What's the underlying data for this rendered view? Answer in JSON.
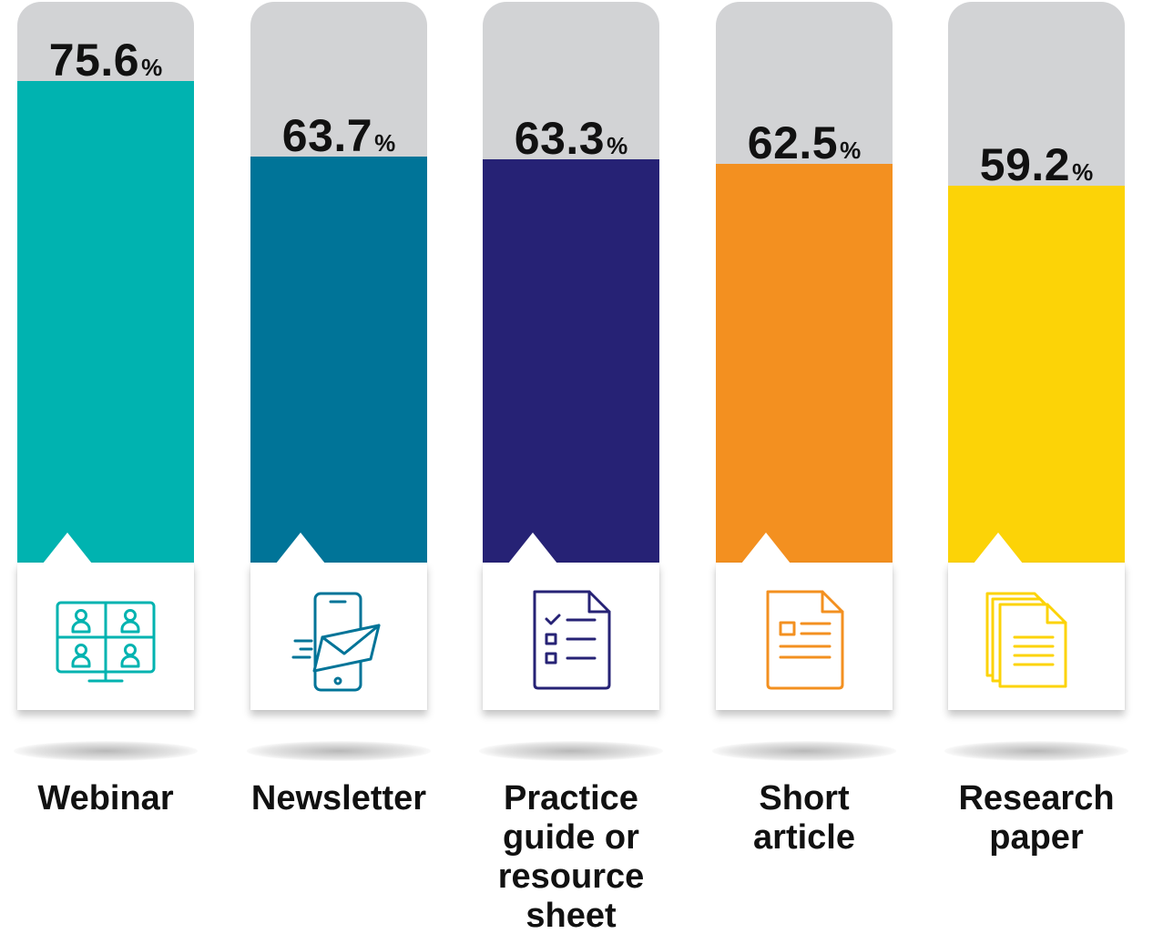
{
  "chart_data": {
    "type": "bar",
    "categories": [
      "Webinar",
      "Newsletter",
      "Practice\nguide or\nresource\nsheet",
      "Short\narticle",
      "Research\npaper"
    ],
    "values": [
      75.6,
      63.7,
      63.3,
      62.5,
      59.2
    ],
    "value_labels": [
      "75.6",
      "63.7",
      "63.3",
      "62.5",
      "59.2"
    ],
    "value_suffix": "%",
    "ylim": [
      0,
      100
    ],
    "colors": [
      "#00b3b0",
      "#007498",
      "#262275",
      "#f39020",
      "#fcd307"
    ],
    "track_color": "#d2d3d5",
    "icons": [
      "video-conference-icon",
      "mobile-newsletter-icon",
      "checklist-document-icon",
      "article-document-icon",
      "stacked-papers-icon"
    ],
    "title": "",
    "xlabel": "",
    "ylabel": "",
    "grid": false,
    "legend": "none"
  }
}
